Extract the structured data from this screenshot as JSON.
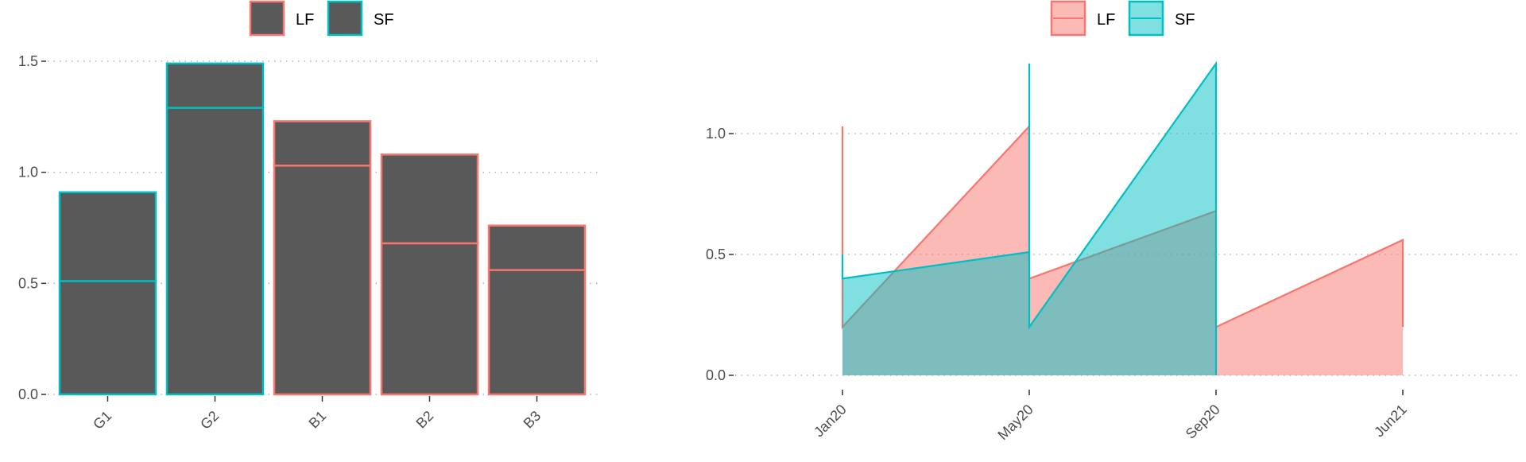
{
  "chart_data": [
    {
      "type": "bar",
      "categories": [
        "G1",
        "G2",
        "B1",
        "B2",
        "B3"
      ],
      "totals": [
        0.91,
        1.49,
        1.23,
        1.08,
        0.76
      ],
      "inner_lines": [
        0.51,
        1.29,
        1.03,
        0.68,
        0.56
      ],
      "group": [
        "SF",
        "SF",
        "LF",
        "LF",
        "LF"
      ],
      "ylim": [
        0,
        1.55
      ],
      "yticks": [
        0.0,
        0.5,
        1.0,
        1.5
      ],
      "ytick_labels": [
        "0.0",
        "0.5",
        "1.0",
        "1.5"
      ],
      "legend": [
        {
          "label": "LF",
          "color": "#F8766D"
        },
        {
          "label": "SF",
          "color": "#00BFC4"
        }
      ],
      "legend_position": "top",
      "bar_fill": "#595959",
      "grid": "horizontal-dotted"
    },
    {
      "type": "area",
      "x_labels": [
        "Jan20",
        "May20",
        "Sep20",
        "Jun21"
      ],
      "xlim": [
        "Jan20",
        "Jun21"
      ],
      "ylim": [
        0,
        1.3
      ],
      "yticks": [
        0.0,
        0.5,
        1.0
      ],
      "ytick_labels": [
        "0.0",
        "0.5",
        "1.0"
      ],
      "series": [
        {
          "name": "LF",
          "color": "#F8766D",
          "fill": "#F8766D",
          "points": [
            [
              "Jan20",
              1.03
            ],
            [
              "Jan20",
              0.2
            ],
            [
              "May20",
              1.03
            ],
            [
              "May20",
              0.4
            ],
            [
              "Sep20",
              0.68
            ],
            [
              "Sep20",
              0.2
            ],
            [
              "Jun21",
              0.56
            ],
            [
              "Jun21",
              0.2
            ]
          ]
        },
        {
          "name": "SF",
          "color": "#00BFC4",
          "fill": "#00BFC4",
          "points": [
            [
              "Jan20",
              0.5
            ],
            [
              "Jan20",
              0.4
            ],
            [
              "May20",
              0.51
            ],
            [
              "May20",
              1.29
            ],
            [
              "May20",
              0.2
            ],
            [
              "Sep20",
              1.29
            ],
            [
              "Sep20",
              0.0
            ]
          ]
        }
      ],
      "legend": [
        {
          "label": "LF",
          "color": "#F8766D"
        },
        {
          "label": "SF",
          "color": "#00BFC4"
        }
      ],
      "legend_position": "top",
      "grid": "horizontal-dotted"
    }
  ]
}
